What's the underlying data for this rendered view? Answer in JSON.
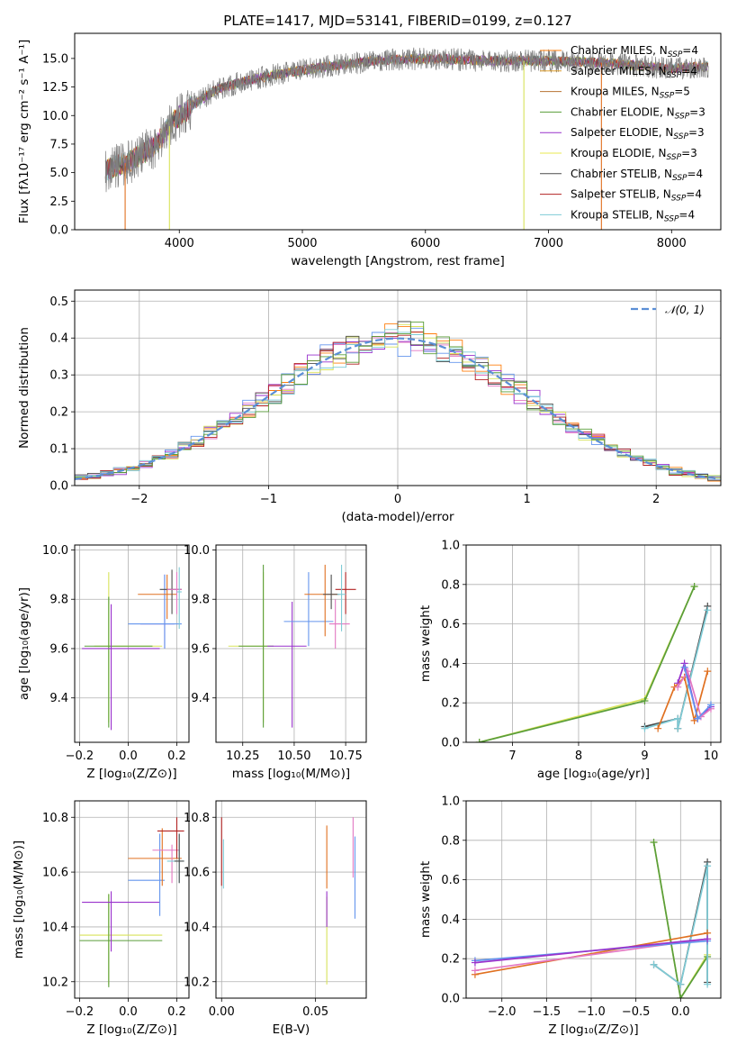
{
  "figure_title": "PLATE=1417, MJD=53141, FIBERID=0199, z=0.127",
  "colors": {
    "grid": "#b0b0b0",
    "models": [
      "#7f7f7f",
      "#ff7f0e",
      "#e377c2",
      "#6495ed",
      "#9932cc",
      "#d8e35a",
      "#4c4c4c",
      "#b22222",
      "#7ecbd6",
      "#5a9e3a",
      "#e07020",
      "#2f4f4f"
    ]
  },
  "legend_spectrum": [
    {
      "label": "Chabrier MILES, N",
      "sub": "SSP",
      "suffix": "=4",
      "color": "#ff7f0e"
    },
    {
      "label": "Salpeter MILES, N",
      "sub": "SSP",
      "suffix": "=4",
      "color": "#e0a030"
    },
    {
      "label": "Kroupa MILES, N",
      "sub": "SSP",
      "suffix": "=5",
      "color": "#b87333"
    },
    {
      "label": "Chabrier ELODIE, N",
      "sub": "SSP",
      "suffix": "=3",
      "color": "#5a9e3a"
    },
    {
      "label": "Salpeter ELODIE, N",
      "sub": "SSP",
      "suffix": "=3",
      "color": "#9932cc"
    },
    {
      "label": "Kroupa ELODIE, N",
      "sub": "SSP",
      "suffix": "=3",
      "color": "#e8e850"
    },
    {
      "label": "Chabrier STELIB, N",
      "sub": "SSP",
      "suffix": "=4",
      "color": "#4c4c4c"
    },
    {
      "label": "Salpeter STELIB, N",
      "sub": "SSP",
      "suffix": "=4",
      "color": "#b22222"
    },
    {
      "label": "Kroupa STELIB, N",
      "sub": "SSP",
      "suffix": "=4",
      "color": "#7ecbd6"
    }
  ],
  "legend_hist": {
    "label": "𝒩(0, 1)",
    "color": "#5b8fd6"
  },
  "chart_data": [
    {
      "id": "spectrum",
      "type": "line",
      "xlabel": "wavelength [Angstrom, rest frame]",
      "ylabel": "Flux [fλ10⁻¹⁷ erg cm⁻² s⁻¹ A⁻¹]",
      "xlim": [
        3150,
        8400
      ],
      "ylim": [
        0,
        17.2
      ],
      "xticks": [
        4000,
        5000,
        6000,
        7000,
        8000
      ],
      "yticks": [
        0.0,
        2.5,
        5.0,
        7.5,
        10.0,
        12.5,
        15.0
      ],
      "continuum": [
        [
          3400,
          5.2
        ],
        [
          3600,
          6.0
        ],
        [
          3800,
          7.3
        ],
        [
          3950,
          9.5
        ],
        [
          4100,
          10.8
        ],
        [
          4300,
          12.3
        ],
        [
          4600,
          13.2
        ],
        [
          4900,
          13.8
        ],
        [
          5200,
          14.3
        ],
        [
          5600,
          14.8
        ],
        [
          6000,
          15.0
        ],
        [
          6500,
          14.8
        ],
        [
          7000,
          14.8
        ],
        [
          7500,
          14.6
        ],
        [
          8000,
          14.1
        ],
        [
          8300,
          14.3
        ]
      ],
      "dropouts": [
        {
          "x": 3560,
          "color": "#e07020"
        },
        {
          "x": 3920,
          "color": "#d8e35a"
        },
        {
          "x": 6800,
          "color": "#d8e35a"
        },
        {
          "x": 7430,
          "color": "#e07020"
        }
      ]
    },
    {
      "id": "residual_hist",
      "type": "line",
      "xlabel": "(data-model)/error",
      "ylabel": "Normed distribution",
      "xlim": [
        -2.5,
        2.5
      ],
      "ylim": [
        0,
        0.53
      ],
      "xticks": [
        -2,
        -1,
        0,
        1,
        2
      ],
      "yticks": [
        0.0,
        0.1,
        0.2,
        0.3,
        0.4,
        0.5
      ],
      "gaussian_sigma": 1
    },
    {
      "id": "age_vs_Z",
      "type": "scatter",
      "xlabel": "Z [log₁₀(Z/Z⊙)]",
      "ylabel": "age  [log₁₀(age/yr)]",
      "xlim": [
        -0.22,
        0.25
      ],
      "ylim": [
        9.22,
        10.02
      ],
      "xticks": [
        -0.2,
        0.0,
        0.2
      ],
      "yticks": [
        9.4,
        9.6,
        9.8,
        10.0
      ],
      "points": [
        {
          "x": -0.08,
          "y": 9.61,
          "xerr": [
            0.06,
            0.22
          ],
          "yerr": [
            0.31,
            0.3
          ],
          "color": "#d8e35a"
        },
        {
          "x": -0.08,
          "y": 9.61,
          "xerr": [
            0.1,
            0.18
          ],
          "yerr": [
            0.33,
            0.2
          ],
          "color": "#5a9e3a"
        },
        {
          "x": -0.07,
          "y": 9.6,
          "xerr": [
            0.12,
            0.2
          ],
          "yerr": [
            0.33,
            0.18
          ],
          "color": "#9932cc"
        },
        {
          "x": 0.15,
          "y": 9.7,
          "xerr": [
            0.1,
            0.04
          ],
          "yerr": [
            0.1,
            0.2
          ],
          "color": "#9932cc"
        },
        {
          "x": 0.15,
          "y": 9.7,
          "xerr": [
            0.15,
            0.07
          ],
          "yerr": [
            0.1,
            0.2
          ],
          "color": "#6495ed"
        },
        {
          "x": 0.16,
          "y": 9.82,
          "xerr": [
            0.12,
            0.04
          ],
          "yerr": [
            0.1,
            0.08
          ],
          "color": "#e07020"
        },
        {
          "x": 0.18,
          "y": 9.84,
          "xerr": [
            0.05,
            0.04
          ],
          "yerr": [
            0.1,
            0.08
          ],
          "color": "#4c4c4c"
        },
        {
          "x": 0.2,
          "y": 9.84,
          "xerr": [
            0.04,
            0.02
          ],
          "yerr": [
            0.1,
            0.07
          ],
          "color": "#e377c2"
        },
        {
          "x": 0.21,
          "y": 9.83,
          "xerr": [
            0.01,
            0.01
          ],
          "yerr": [
            0.15,
            0.1
          ],
          "color": "#7ecbd6"
        }
      ]
    },
    {
      "id": "age_vs_mass",
      "type": "scatter",
      "xlabel": "mass [log₁₀(M/M⊙)]",
      "ylabel": "",
      "xlim": [
        10.12,
        10.85
      ],
      "ylim": [
        9.22,
        10.02
      ],
      "xticks": [
        10.25,
        10.5,
        10.75
      ],
      "yticks": [
        9.4,
        9.6,
        9.8,
        10.0
      ],
      "points": [
        {
          "x": 10.35,
          "y": 9.61,
          "xerr": [
            0.17,
            0.02
          ],
          "yerr": [
            0.31,
            0.3
          ],
          "color": "#d8e35a"
        },
        {
          "x": 10.35,
          "y": 9.61,
          "xerr": [
            0.12,
            0.05
          ],
          "yerr": [
            0.33,
            0.33
          ],
          "color": "#5a9e3a"
        },
        {
          "x": 10.49,
          "y": 9.61,
          "xerr": [
            0.12,
            0.07
          ],
          "yerr": [
            0.33,
            0.18
          ],
          "color": "#9932cc"
        },
        {
          "x": 10.57,
          "y": 9.71,
          "xerr": [
            0.12,
            0.12
          ],
          "yerr": [
            0.1,
            0.2
          ],
          "color": "#6495ed"
        },
        {
          "x": 10.65,
          "y": 9.82,
          "xerr": [
            0.1,
            0.06
          ],
          "yerr": [
            0.17,
            0.12
          ],
          "color": "#e07020"
        },
        {
          "x": 10.68,
          "y": 9.82,
          "xerr": [
            0.04,
            0.04
          ],
          "yerr": [
            0.06,
            0.08
          ],
          "color": "#4c4c4c"
        },
        {
          "x": 10.7,
          "y": 9.7,
          "xerr": [
            0.03,
            0.07
          ],
          "yerr": [
            0.1,
            0.1
          ],
          "color": "#e377c2"
        },
        {
          "x": 10.75,
          "y": 9.84,
          "xerr": [
            0.05,
            0.05
          ],
          "yerr": [
            0.1,
            0.07
          ],
          "color": "#b22222"
        },
        {
          "x": 10.73,
          "y": 9.82,
          "xerr": [
            0.02,
            0.02
          ],
          "yerr": [
            0.15,
            0.12
          ],
          "color": "#7ecbd6"
        }
      ]
    },
    {
      "id": "weight_vs_age",
      "type": "line",
      "xlabel": "age  [log₁₀(age/yr)]",
      "ylabel": "mass weight",
      "xlim": [
        6.3,
        10.15
      ],
      "ylim": [
        0,
        1.0
      ],
      "xticks": [
        7,
        8,
        9,
        10
      ],
      "yticks": [
        0.0,
        0.2,
        0.4,
        0.6,
        0.8,
        1.0
      ],
      "series": [
        {
          "color": "#d8e35a",
          "x": [
            6.5,
            9.0,
            9.75
          ],
          "y": [
            0.0,
            0.22,
            0.79
          ]
        },
        {
          "color": "#5a9e3a",
          "x": [
            6.5,
            9.0,
            9.75
          ],
          "y": [
            0.0,
            0.21,
            0.79
          ]
        },
        {
          "color": "#4c4c4c",
          "x": [
            9.0,
            9.5,
            9.5,
            9.95
          ],
          "y": [
            0.08,
            0.12,
            0.07,
            0.69
          ]
        },
        {
          "color": "#7ecbd6",
          "x": [
            9.0,
            9.5,
            9.5,
            9.95
          ],
          "y": [
            0.07,
            0.12,
            0.07,
            0.67
          ]
        },
        {
          "color": "#e07020",
          "x": [
            9.2,
            9.45,
            9.6,
            9.75,
            9.95
          ],
          "y": [
            0.07,
            0.28,
            0.33,
            0.11,
            0.36
          ]
        },
        {
          "color": "#9932cc",
          "x": [
            9.5,
            9.6,
            9.8,
            10.0
          ],
          "y": [
            0.3,
            0.4,
            0.12,
            0.18
          ]
        },
        {
          "color": "#e377c2",
          "x": [
            9.5,
            9.65,
            9.85,
            10.0
          ],
          "y": [
            0.28,
            0.36,
            0.13,
            0.17
          ]
        },
        {
          "color": "#6495ed",
          "x": [
            9.6,
            9.8,
            10.0
          ],
          "y": [
            0.38,
            0.12,
            0.19
          ]
        }
      ]
    },
    {
      "id": "mass_vs_Z",
      "type": "scatter",
      "xlabel": "Z [log₁₀(Z/Z⊙)]",
      "ylabel": "mass [log₁₀(M/M⊙)]",
      "xlim": [
        -0.22,
        0.25
      ],
      "ylim": [
        10.14,
        10.86
      ],
      "xticks": [
        -0.2,
        0.0,
        0.2
      ],
      "yticks": [
        10.2,
        10.4,
        10.6,
        10.8
      ],
      "points": [
        {
          "x": -0.08,
          "y": 10.37,
          "xerr": [
            0.12,
            0.22
          ],
          "yerr": [
            0.18,
            0.15
          ],
          "color": "#d8e35a"
        },
        {
          "x": -0.08,
          "y": 10.35,
          "xerr": [
            0.12,
            0.22
          ],
          "yerr": [
            0.17,
            0.17
          ],
          "color": "#5a9e3a"
        },
        {
          "x": -0.07,
          "y": 10.49,
          "xerr": [
            0.12,
            0.2
          ],
          "yerr": [
            0.18,
            0.04
          ],
          "color": "#9932cc"
        },
        {
          "x": 0.13,
          "y": 10.57,
          "xerr": [
            0.13,
            0.02
          ],
          "yerr": [
            0.13,
            0.17
          ],
          "color": "#6495ed"
        },
        {
          "x": 0.14,
          "y": 10.65,
          "xerr": [
            0.14,
            0.08
          ],
          "yerr": [
            0.1,
            0.11
          ],
          "color": "#e07020"
        },
        {
          "x": 0.18,
          "y": 10.68,
          "xerr": [
            0.08,
            0.03
          ],
          "yerr": [
            0.12,
            0.02
          ],
          "color": "#e377c2"
        },
        {
          "x": 0.2,
          "y": 10.75,
          "xerr": [
            0.08,
            0.03
          ],
          "yerr": [
            0.1,
            0.05
          ],
          "color": "#b22222"
        },
        {
          "x": 0.21,
          "y": 10.64,
          "xerr": [
            0.05,
            0.02
          ],
          "yerr": [
            0.08,
            0.1
          ],
          "color": "#7ecbd6"
        },
        {
          "x": 0.21,
          "y": 10.64,
          "xerr": [
            0.02,
            0.02
          ],
          "yerr": [
            0.08,
            0.1
          ],
          "color": "#4c4c4c"
        }
      ]
    },
    {
      "id": "mass_vs_EBV",
      "type": "scatter",
      "xlabel": "E(B-V)",
      "ylabel": "",
      "xlim": [
        -0.003,
        0.077
      ],
      "ylim": [
        10.14,
        10.86
      ],
      "xticks": [
        0.0,
        0.05
      ],
      "yticks": [
        10.2,
        10.4,
        10.6,
        10.8
      ],
      "points": [
        {
          "x": 0.0,
          "y": 10.7,
          "xerr": [
            0,
            0
          ],
          "yerr": [
            0.15,
            0.1
          ],
          "color": "#b22222"
        },
        {
          "x": 0.001,
          "y": 10.62,
          "xerr": [
            0,
            0
          ],
          "yerr": [
            0.08,
            0.1
          ],
          "color": "#7ecbd6"
        },
        {
          "x": 0.056,
          "y": 10.36,
          "xerr": [
            0,
            0
          ],
          "yerr": [
            0.17,
            0.15
          ],
          "color": "#d8e35a"
        },
        {
          "x": 0.056,
          "y": 10.5,
          "xerr": [
            0,
            0
          ],
          "yerr": [
            0.1,
            0.03
          ],
          "color": "#9932cc"
        },
        {
          "x": 0.056,
          "y": 10.64,
          "xerr": [
            0,
            0
          ],
          "yerr": [
            0.1,
            0.13
          ],
          "color": "#e07020"
        },
        {
          "x": 0.07,
          "y": 10.68,
          "xerr": [
            0,
            0
          ],
          "yerr": [
            0.1,
            0.12
          ],
          "color": "#e377c2"
        },
        {
          "x": 0.071,
          "y": 10.58,
          "xerr": [
            0,
            0
          ],
          "yerr": [
            0.15,
            0.15
          ],
          "color": "#6495ed"
        }
      ]
    },
    {
      "id": "weight_vs_Z",
      "type": "line",
      "xlabel": "Z [log₁₀(Z/Z⊙)]",
      "ylabel": "mass weight",
      "xlim": [
        -2.4,
        0.45
      ],
      "ylim": [
        0,
        1.0
      ],
      "xticks": [
        -2.0,
        -1.5,
        -1.0,
        -0.5,
        0.0
      ],
      "yticks": [
        0.0,
        0.2,
        0.4,
        0.6,
        0.8,
        1.0
      ],
      "series": [
        {
          "color": "#d8e35a",
          "x": [
            -0.3,
            0.0,
            0.3
          ],
          "y": [
            0.79,
            0.0,
            0.22
          ]
        },
        {
          "color": "#5a9e3a",
          "x": [
            -0.3,
            0.0,
            0.3
          ],
          "y": [
            0.79,
            0.0,
            0.21
          ]
        },
        {
          "color": "#4c4c4c",
          "x": [
            -0.3,
            0.0,
            0.3,
            0.3
          ],
          "y": [
            0.17,
            0.07,
            0.69,
            0.08
          ]
        },
        {
          "color": "#7ecbd6",
          "x": [
            -0.3,
            0.0,
            0.3,
            0.3
          ],
          "y": [
            0.17,
            0.07,
            0.67,
            0.07
          ]
        },
        {
          "color": "#e07020",
          "x": [
            -2.3,
            0.3
          ],
          "y": [
            0.12,
            0.33
          ]
        },
        {
          "color": "#e377c2",
          "x": [
            -2.3,
            0.3
          ],
          "y": [
            0.14,
            0.3
          ]
        },
        {
          "color": "#6495ed",
          "x": [
            -2.3,
            0.3
          ],
          "y": [
            0.19,
            0.29
          ]
        },
        {
          "color": "#9932cc",
          "x": [
            -2.3,
            0.3
          ],
          "y": [
            0.18,
            0.3
          ]
        }
      ]
    }
  ]
}
